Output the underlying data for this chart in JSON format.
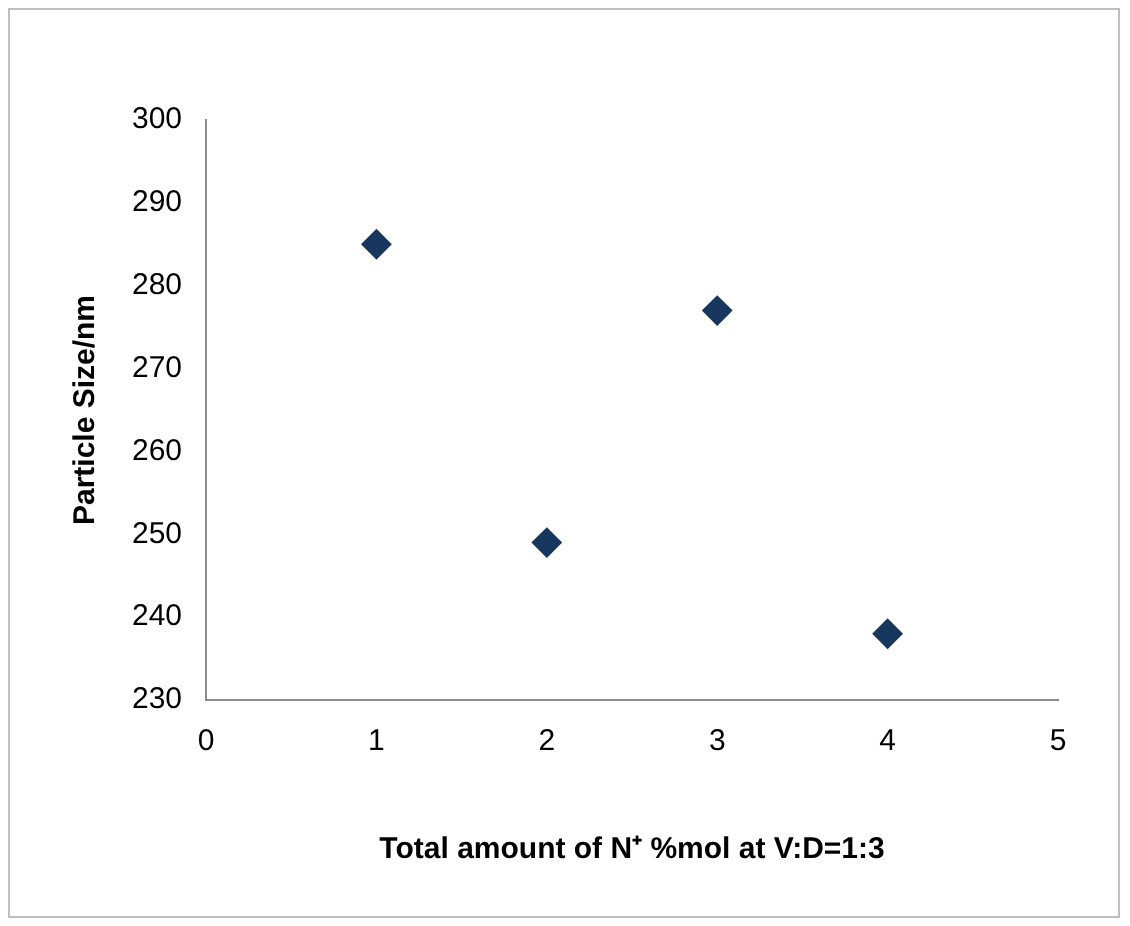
{
  "chart_data": {
    "type": "scatter",
    "xlabel": "Total amount of N⁺ %mol at V:D=1:3",
    "ylabel": "Particle Size/nm",
    "x": [
      1,
      2,
      3,
      4
    ],
    "values": [
      285,
      249,
      277,
      238
    ],
    "color": "#17375e",
    "marker": "diamond",
    "xlim": [
      0,
      5
    ],
    "xticks": [
      0,
      1,
      2,
      3,
      4,
      5
    ],
    "ylim": [
      230,
      300
    ],
    "yticks": [
      230,
      240,
      250,
      260,
      270,
      280,
      290,
      300
    ],
    "grid": false,
    "legend": false
  }
}
